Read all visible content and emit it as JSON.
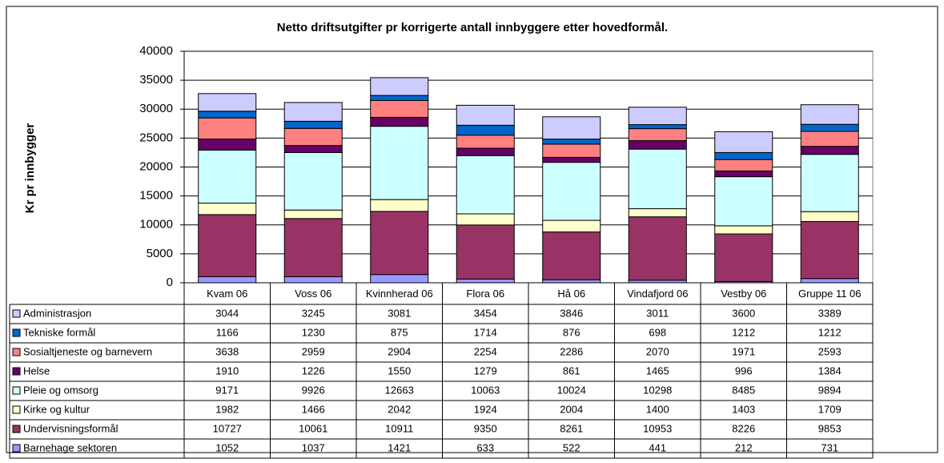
{
  "chart_data": {
    "type": "stacked_bar",
    "title": "Netto driftsutgifter pr korrigerte antall innbyggere etter hovedformål.",
    "y_label": "Kr pr innbygger",
    "categories": [
      "Kvam 06",
      "Voss 06",
      "Kvinnherad 06",
      "Flora 06",
      "Hå 06",
      "Vindafjord 06",
      "Vestby 06",
      "Gruppe 11 06"
    ],
    "series": [
      {
        "name": "Administrasjon",
        "color": "#ccccff",
        "values": [
          3044,
          3245,
          3081,
          3454,
          3846,
          3011,
          3600,
          3389
        ]
      },
      {
        "name": "Tekniske formål",
        "color": "#0066cc",
        "values": [
          1166,
          1230,
          875,
          1714,
          876,
          698,
          1212,
          1212
        ]
      },
      {
        "name": "Sosialtjeneste og barnevern",
        "color": "#ff8080",
        "values": [
          3638,
          2959,
          2904,
          2254,
          2286,
          2070,
          1971,
          2593
        ]
      },
      {
        "name": "Helse",
        "color": "#660066",
        "values": [
          1910,
          1226,
          1550,
          1279,
          861,
          1465,
          996,
          1384
        ]
      },
      {
        "name": "Pleie og omsorg",
        "color": "#ccffff",
        "values": [
          9171,
          9926,
          12663,
          10063,
          10024,
          10298,
          8485,
          9894
        ]
      },
      {
        "name": "Kirke og kultur",
        "color": "#ffffcc",
        "values": [
          1982,
          1466,
          2042,
          1924,
          2004,
          1400,
          1403,
          1709
        ]
      },
      {
        "name": "Undervisningsformål",
        "color": "#993366",
        "values": [
          10727,
          10061,
          10911,
          9350,
          8261,
          10953,
          8226,
          9853
        ]
      },
      {
        "name": "Barnehage sektoren",
        "color": "#9999ff",
        "values": [
          1052,
          1037,
          1421,
          633,
          522,
          441,
          212,
          731
        ]
      }
    ],
    "ylim": [
      0,
      40000
    ],
    "yticks": [
      0,
      5000,
      10000,
      15000,
      20000,
      25000,
      30000,
      35000,
      40000
    ],
    "grid": true
  }
}
